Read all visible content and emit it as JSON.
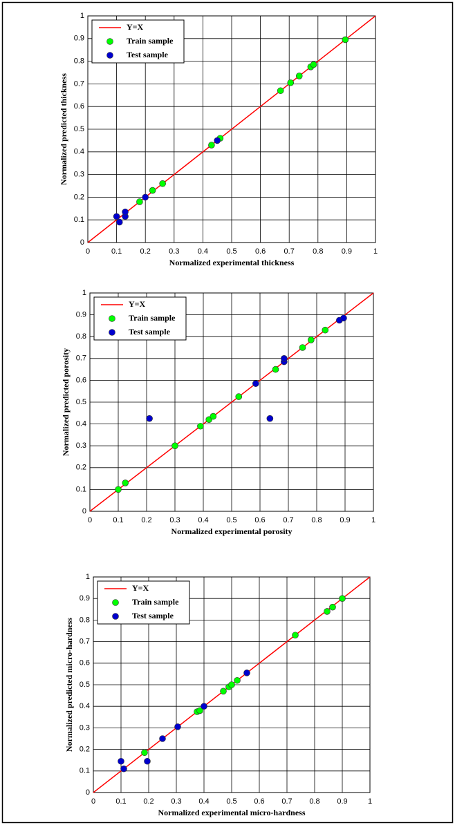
{
  "chart_data": [
    {
      "type": "scatter",
      "xlabel": "Normalized experimental thickness",
      "ylabel": "Normalized predicted thickness",
      "xlim": [
        0,
        1
      ],
      "ylim": [
        0,
        1
      ],
      "xticks": [
        0,
        0.1,
        0.2,
        0.3,
        0.4,
        0.5,
        0.6,
        0.7,
        0.8,
        0.9,
        1
      ],
      "yticks": [
        0,
        0.1,
        0.2,
        0.3,
        0.4,
        0.5,
        0.6,
        0.7,
        0.8,
        0.9,
        1
      ],
      "grid": true,
      "legend": "upper left",
      "series": [
        {
          "name": "Y=X",
          "style": "line",
          "color": "#ff0000",
          "x": [
            0,
            1
          ],
          "values": [
            0,
            1
          ]
        },
        {
          "name": "Train sample",
          "style": "marker",
          "color": "#00ff00",
          "x": [
            0.18,
            0.225,
            0.26,
            0.43,
            0.46,
            0.67,
            0.705,
            0.735,
            0.775,
            0.785,
            0.895
          ],
          "values": [
            0.18,
            0.23,
            0.26,
            0.43,
            0.46,
            0.67,
            0.705,
            0.735,
            0.775,
            0.785,
            0.895
          ]
        },
        {
          "name": "Test sample",
          "style": "marker",
          "color": "#0000cd",
          "x": [
            0.1,
            0.11,
            0.13,
            0.13,
            0.2,
            0.45
          ],
          "values": [
            0.115,
            0.09,
            0.115,
            0.135,
            0.2,
            0.45
          ]
        }
      ]
    },
    {
      "type": "scatter",
      "xlabel": "Normalized experimental porosity",
      "ylabel": "Normalized predicted porosity",
      "xlim": [
        0,
        1
      ],
      "ylim": [
        0,
        1
      ],
      "xticks": [
        0,
        0.1,
        0.2,
        0.3,
        0.4,
        0.5,
        0.6,
        0.7,
        0.8,
        0.9,
        1
      ],
      "yticks": [
        0,
        0.1,
        0.2,
        0.3,
        0.4,
        0.5,
        0.6,
        0.7,
        0.8,
        0.9,
        1
      ],
      "grid": true,
      "legend": "upper left",
      "series": [
        {
          "name": "Y=X",
          "style": "line",
          "color": "#ff0000",
          "x": [
            0,
            1
          ],
          "values": [
            0,
            1
          ]
        },
        {
          "name": "Train sample",
          "style": "marker",
          "color": "#00ff00",
          "x": [
            0.1,
            0.125,
            0.3,
            0.39,
            0.42,
            0.435,
            0.525,
            0.655,
            0.75,
            0.78,
            0.83
          ],
          "values": [
            0.1,
            0.13,
            0.3,
            0.39,
            0.42,
            0.435,
            0.525,
            0.65,
            0.75,
            0.785,
            0.83
          ]
        },
        {
          "name": "Test sample",
          "style": "marker",
          "color": "#0000cd",
          "x": [
            0.21,
            0.585,
            0.635,
            0.685,
            0.685,
            0.88,
            0.895
          ],
          "values": [
            0.425,
            0.585,
            0.425,
            0.685,
            0.7,
            0.875,
            0.885
          ]
        }
      ]
    },
    {
      "type": "scatter",
      "xlabel": "Normalized experimental micro-hardness",
      "ylabel": "Normalized predicted micro-hardness",
      "xlim": [
        0,
        1
      ],
      "ylim": [
        0,
        1
      ],
      "xticks": [
        0,
        0.1,
        0.2,
        0.3,
        0.4,
        0.5,
        0.6,
        0.7,
        0.8,
        0.9,
        1
      ],
      "yticks": [
        0,
        0.1,
        0.2,
        0.3,
        0.4,
        0.5,
        0.6,
        0.7,
        0.8,
        0.9,
        1
      ],
      "grid": true,
      "legend": "upper left",
      "series": [
        {
          "name": "Y=X",
          "style": "line",
          "color": "#ff0000",
          "x": [
            0,
            1
          ],
          "values": [
            0,
            1
          ]
        },
        {
          "name": "Train sample",
          "style": "marker",
          "color": "#00ff00",
          "x": [
            0.185,
            0.375,
            0.385,
            0.47,
            0.49,
            0.5,
            0.52,
            0.73,
            0.845,
            0.865,
            0.9
          ],
          "values": [
            0.185,
            0.375,
            0.38,
            0.47,
            0.49,
            0.5,
            0.52,
            0.73,
            0.84,
            0.86,
            0.9
          ]
        },
        {
          "name": "Test sample",
          "style": "marker",
          "color": "#0000cd",
          "x": [
            0.1,
            0.11,
            0.195,
            0.25,
            0.305,
            0.4,
            0.555
          ],
          "values": [
            0.145,
            0.11,
            0.145,
            0.25,
            0.305,
            0.4,
            0.555
          ]
        }
      ]
    }
  ]
}
